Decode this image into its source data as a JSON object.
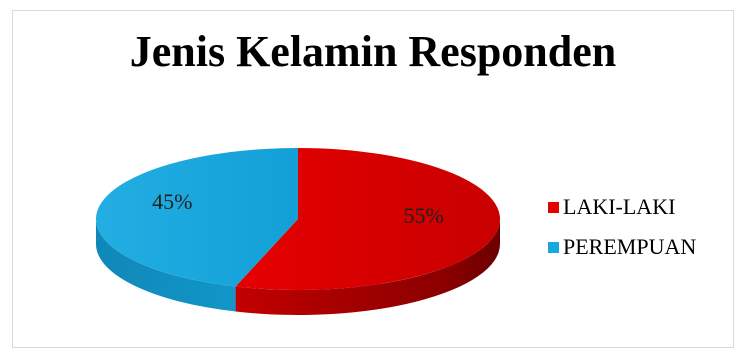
{
  "chart_data": {
    "type": "pie",
    "title": "Jenis Kelamin Responden",
    "categories": [
      "LAKI-LAKI",
      "PEREMPUAN"
    ],
    "values": [
      55,
      45
    ],
    "value_labels": [
      "55%",
      "45%"
    ],
    "colors": [
      "#e60000",
      "#19a8dd"
    ],
    "legend_position": "right",
    "style": "3d"
  }
}
